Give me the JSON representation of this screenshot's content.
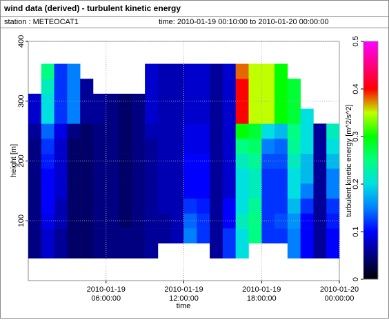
{
  "chart_data": {
    "type": "heatmap",
    "title": "wind data (derived) - turbulent kinetic energy",
    "station": "station : METEOCAT1",
    "time_range": "time: 2010-01-19 00:10:00 to 2010-01-20 00:00:00",
    "x_label": "time",
    "y_label": "height [m]",
    "colorbar_label": "turbulent kinetic energy [m^2/s^2]",
    "x": [
      "2010-01-19 00:30:00",
      "2010-01-19 01:30:00",
      "2010-01-19 02:30:00",
      "2010-01-19 03:30:00",
      "2010-01-19 04:30:00",
      "2010-01-19 05:30:00",
      "2010-01-19 06:30:00",
      "2010-01-19 07:30:00",
      "2010-01-19 08:30:00",
      "2010-01-19 09:30:00",
      "2010-01-19 10:30:00",
      "2010-01-19 11:30:00",
      "2010-01-19 12:30:00",
      "2010-01-19 13:30:00",
      "2010-01-19 14:30:00",
      "2010-01-19 15:30:00",
      "2010-01-19 16:30:00",
      "2010-01-19 17:30:00",
      "2010-01-19 18:30:00",
      "2010-01-19 19:30:00",
      "2010-01-19 20:30:00",
      "2010-01-19 21:30:00",
      "2010-01-19 22:30:00",
      "2010-01-19 23:30:00"
    ],
    "y": [
      50,
      75,
      100,
      125,
      150,
      175,
      200,
      225,
      250,
      275,
      300,
      325,
      350
    ],
    "z": [
      [
        0.05,
        0.08,
        0.06,
        0.04,
        0.04,
        0.05,
        0.05,
        0.05,
        0.05,
        0.06,
        null,
        null,
        null,
        null,
        0.06,
        0.12,
        0.2,
        null,
        null,
        null,
        0.15,
        0.1,
        0.06,
        0.1
      ],
      [
        0.05,
        0.08,
        0.06,
        0.04,
        0.04,
        0.05,
        0.05,
        0.05,
        0.05,
        0.06,
        0.06,
        0.07,
        0.15,
        0.12,
        0.06,
        0.12,
        0.2,
        0.25,
        0.12,
        0.12,
        0.15,
        0.1,
        0.06,
        0.1
      ],
      [
        0.05,
        0.09,
        0.07,
        0.04,
        0.04,
        0.05,
        0.05,
        0.04,
        0.05,
        0.06,
        0.06,
        0.07,
        0.14,
        0.12,
        0.06,
        0.1,
        0.22,
        0.25,
        0.12,
        0.13,
        0.16,
        0.1,
        0.06,
        0.11
      ],
      [
        0.05,
        0.1,
        0.07,
        0.04,
        0.04,
        0.05,
        0.05,
        0.04,
        0.05,
        0.06,
        0.07,
        0.07,
        0.12,
        0.11,
        0.06,
        0.1,
        0.2,
        0.24,
        0.12,
        0.12,
        0.18,
        0.12,
        0.06,
        0.12
      ],
      [
        0.05,
        0.1,
        0.08,
        0.04,
        0.04,
        0.05,
        0.05,
        0.04,
        0.05,
        0.06,
        0.07,
        0.07,
        0.1,
        0.1,
        0.06,
        0.08,
        0.2,
        0.22,
        0.12,
        0.12,
        0.2,
        0.15,
        0.06,
        0.15
      ],
      [
        0.05,
        0.1,
        0.08,
        0.04,
        0.04,
        0.05,
        0.05,
        0.04,
        0.05,
        0.06,
        0.07,
        0.07,
        0.1,
        0.1,
        0.06,
        0.08,
        0.2,
        0.22,
        0.12,
        0.12,
        0.2,
        0.18,
        0.06,
        0.15
      ],
      [
        0.05,
        0.11,
        0.08,
        0.04,
        0.04,
        0.05,
        0.05,
        0.04,
        0.05,
        0.06,
        0.07,
        0.07,
        0.1,
        0.1,
        0.06,
        0.08,
        0.22,
        0.24,
        0.13,
        0.13,
        0.22,
        0.18,
        0.06,
        0.18
      ],
      [
        0.05,
        0.12,
        0.08,
        0.04,
        0.04,
        0.05,
        0.05,
        0.04,
        0.05,
        0.06,
        0.07,
        0.07,
        0.09,
        0.09,
        0.06,
        0.08,
        0.25,
        0.26,
        0.15,
        0.14,
        0.24,
        0.2,
        0.06,
        0.2
      ],
      [
        0.06,
        0.14,
        0.09,
        0.05,
        0.04,
        0.05,
        0.05,
        0.04,
        0.05,
        0.07,
        0.07,
        0.07,
        0.09,
        0.09,
        0.06,
        0.08,
        0.3,
        0.28,
        0.2,
        0.18,
        0.25,
        0.2,
        0.06,
        0.22
      ],
      [
        0.08,
        0.2,
        0.12,
        0.15,
        0.06,
        0.06,
        0.05,
        0.04,
        0.05,
        0.08,
        0.07,
        0.07,
        0.08,
        0.08,
        0.06,
        0.08,
        0.4,
        0.35,
        0.35,
        0.3,
        0.28,
        0.2,
        null,
        null
      ],
      [
        0.08,
        0.2,
        0.12,
        0.15,
        0.06,
        0.06,
        0.05,
        0.04,
        0.05,
        0.08,
        0.07,
        0.07,
        0.08,
        0.08,
        0.06,
        0.08,
        0.4,
        0.35,
        0.35,
        0.3,
        0.28,
        null,
        null,
        null
      ],
      [
        null,
        0.22,
        0.12,
        0.15,
        0.06,
        null,
        null,
        null,
        null,
        0.08,
        0.07,
        0.07,
        0.08,
        0.08,
        0.06,
        0.08,
        0.4,
        0.35,
        0.35,
        0.3,
        0.28,
        null,
        null,
        null
      ],
      [
        null,
        0.25,
        0.12,
        0.15,
        null,
        null,
        null,
        null,
        null,
        0.08,
        0.07,
        0.07,
        0.08,
        0.08,
        0.06,
        0.08,
        0.38,
        0.35,
        0.35,
        0.3,
        null,
        null,
        null,
        null
      ]
    ],
    "xlim": [
      "2010-01-19 00:00:00",
      "2010-01-20 00:00:00"
    ],
    "xticks": [
      "2010-01-19 06:00:00",
      "2010-01-19 12:00:00",
      "2010-01-19 18:00:00",
      "2010-01-20 00:00:00"
    ],
    "ylim": [
      0,
      400
    ],
    "yticks": [
      100,
      200,
      300,
      400
    ],
    "zlim": [
      0,
      0.5
    ],
    "zticks": [
      0,
      0.1,
      0.2,
      0.3,
      0.4,
      0.5
    ],
    "colormap": [
      "#000000",
      "#000080",
      "#0000ff",
      "#0080ff",
      "#00e0e0",
      "#00ff80",
      "#00ff00",
      "#c0ff00",
      "#ff0000",
      "#ff0080",
      "#ff00ff"
    ],
    "grid": true
  }
}
